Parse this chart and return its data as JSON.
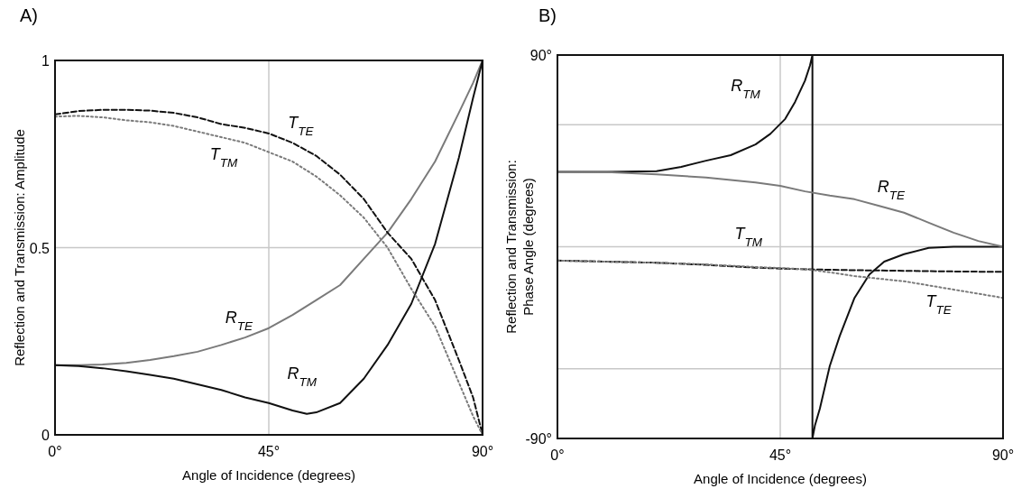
{
  "chart_data": [
    {
      "type": "line",
      "title": "A)",
      "xlabel": "Angle of Incidence (degrees)",
      "ylabel": "Reflection and Transmission: Amplitude",
      "xlim": [
        0,
        90
      ],
      "ylim": [
        0,
        1
      ],
      "xticks": [
        {
          "value": 0,
          "label": "0°"
        },
        {
          "value": 45,
          "label": "45°"
        },
        {
          "value": 90,
          "label": "90°"
        }
      ],
      "yticks": [
        0,
        0.5,
        1
      ],
      "grid": true,
      "series": [
        {
          "name": "R$_{TE}$",
          "color": "#7a7a7a",
          "line_style": "solid",
          "x": [
            0,
            5,
            10,
            15,
            20,
            25,
            30,
            35,
            40,
            45,
            50,
            55,
            60,
            65,
            70,
            75,
            80,
            85,
            88,
            90
          ],
          "values": [
            0.186,
            0.186,
            0.188,
            0.192,
            0.2,
            0.21,
            0.222,
            0.24,
            0.26,
            0.285,
            0.32,
            0.36,
            0.4,
            0.47,
            0.54,
            0.63,
            0.73,
            0.86,
            0.94,
            1
          ]
        },
        {
          "name": "R$_{TM}$",
          "color": "#111111",
          "line_style": "solid",
          "x": [
            0,
            5,
            10,
            15,
            20,
            25,
            30,
            35,
            40,
            45,
            50,
            53,
            55,
            60,
            65,
            70,
            75,
            80,
            85,
            88,
            90
          ],
          "values": [
            0.186,
            0.184,
            0.178,
            0.17,
            0.16,
            0.15,
            0.135,
            0.12,
            0.1,
            0.085,
            0.065,
            0.056,
            0.06,
            0.085,
            0.15,
            0.24,
            0.35,
            0.51,
            0.74,
            0.9,
            1
          ]
        },
        {
          "name": "T$_{TE}$",
          "color": "#111111",
          "line_style": "dashed",
          "x": [
            0,
            5,
            10,
            15,
            20,
            25,
            30,
            35,
            40,
            45,
            50,
            55,
            60,
            65,
            70,
            75,
            80,
            85,
            88,
            90
          ],
          "values": [
            0.856,
            0.865,
            0.868,
            0.868,
            0.866,
            0.86,
            0.848,
            0.83,
            0.82,
            0.805,
            0.78,
            0.745,
            0.695,
            0.63,
            0.54,
            0.47,
            0.36,
            0.2,
            0.1,
            0
          ]
        },
        {
          "name": "T$_{TM}$",
          "color": "#7a7a7a",
          "line_style": "dotted",
          "x": [
            0,
            5,
            10,
            15,
            20,
            25,
            30,
            35,
            40,
            45,
            50,
            55,
            60,
            65,
            70,
            75,
            80,
            85,
            88,
            90
          ],
          "values": [
            0.85,
            0.852,
            0.848,
            0.84,
            0.835,
            0.825,
            0.81,
            0.795,
            0.78,
            0.755,
            0.73,
            0.69,
            0.64,
            0.58,
            0.5,
            0.39,
            0.29,
            0.14,
            0.05,
            0
          ]
        }
      ]
    },
    {
      "type": "line",
      "title": "B)",
      "xlabel": "Angle of Incidence (degrees)",
      "ylabel": "Reflection and Transmission:\nPhase Angle (degrees)",
      "xlim": [
        0,
        90
      ],
      "ylim": [
        -90,
        90
      ],
      "xticks": [
        {
          "value": 0,
          "label": "0°"
        },
        {
          "value": 45,
          "label": "45°"
        },
        {
          "value": 90,
          "label": "90°"
        }
      ],
      "yticks": [
        {
          "value": -90,
          "label": "-90°"
        },
        {
          "value": -57.3,
          "label": null
        },
        {
          "value": 0,
          "label": null
        },
        {
          "value": 57.3,
          "label": null
        },
        {
          "value": 90,
          "label": "90°"
        }
      ],
      "grid": true,
      "series": [
        {
          "name": "R$_{TM}$",
          "color": "#111111",
          "line_style": "solid",
          "x": [
            0,
            10,
            20,
            25,
            30,
            35,
            40,
            43,
            46,
            48,
            50,
            51,
            51.5,
            51.5,
            52,
            53,
            55,
            57,
            60,
            63,
            66,
            70,
            75,
            80,
            90
          ],
          "values": [
            35.2,
            35.2,
            35.5,
            37.5,
            40.4,
            43,
            48,
            53,
            60,
            68,
            78,
            85,
            90,
            -90,
            -84,
            -76,
            -56,
            -42,
            -24,
            -13,
            -7,
            -3.5,
            -0.5,
            0,
            0
          ]
        },
        {
          "name": "R$_{TE}$",
          "color": "#7a7a7a",
          "line_style": "solid",
          "x": [
            0,
            10,
            20,
            30,
            40,
            45,
            50,
            55,
            60,
            65,
            70,
            75,
            80,
            85,
            90
          ],
          "values": [
            35.2,
            35,
            34,
            32.5,
            30.2,
            28.6,
            26,
            24,
            22.3,
            19.2,
            16,
            11.3,
            6.6,
            2.7,
            0
          ]
        },
        {
          "name": "T$_{TM}$",
          "color": "#111111",
          "line_style": "dashed",
          "x": [
            0,
            10,
            20,
            30,
            40,
            50,
            60,
            70,
            80,
            90
          ],
          "values": [
            -6.5,
            -7,
            -7.5,
            -8.5,
            -9.8,
            -10.6,
            -11,
            -11.3,
            -11.6,
            -11.8
          ]
        },
        {
          "name": "T$_{TE}$",
          "color": "#7a7a7a",
          "line_style": "dotted",
          "x": [
            0,
            10,
            20,
            30,
            40,
            50,
            55,
            60,
            70,
            80,
            90
          ],
          "values": [
            -6.5,
            -7,
            -7.5,
            -8.3,
            -9.5,
            -10.5,
            -12,
            -13.8,
            -16.2,
            -20.1,
            -24
          ]
        }
      ]
    }
  ]
}
